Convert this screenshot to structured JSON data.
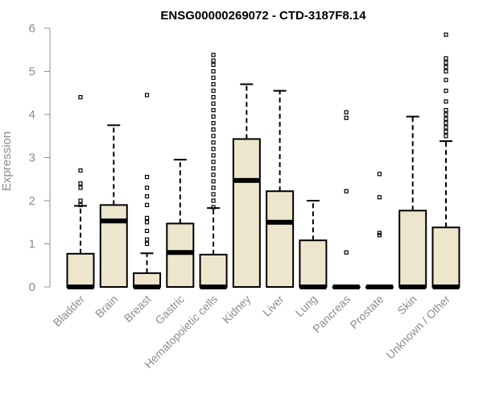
{
  "chart_data": {
    "type": "boxplot",
    "title": "ENSG00000269072 - CTD-3187F8.14",
    "xlabel": "",
    "ylabel": "Expression",
    "ylim": [
      0,
      6
    ],
    "yticks": [
      "0",
      "1",
      "2",
      "3",
      "4",
      "5",
      "6"
    ],
    "grid": false,
    "colors": {
      "box_fill": "#ede6cd",
      "stroke": "#000000",
      "axis": "#8c8c8c"
    },
    "categories": [
      "Bladder",
      "Brain",
      "Breast",
      "Gastric",
      "Hematopoietic cells",
      "Kidney",
      "Liver",
      "Lung",
      "Pancreas",
      "Prostate",
      "Skin",
      "Unknown / Other"
    ],
    "boxes": [
      {
        "min": 0,
        "q1": 0,
        "median": 0,
        "q3": 0.77,
        "max": 1.88,
        "outliers": [
          1.9,
          2.0,
          2.3,
          2.4,
          2.7,
          4.4
        ]
      },
      {
        "min": 0,
        "q1": 0,
        "median": 1.53,
        "q3": 1.9,
        "max": 3.75,
        "outliers": []
      },
      {
        "min": 0,
        "q1": 0,
        "median": 0,
        "q3": 0.32,
        "max": 0.78,
        "outliers": [
          1.0,
          1.1,
          1.3,
          1.5,
          1.6,
          1.9,
          2.1,
          2.3,
          2.55,
          4.45
        ]
      },
      {
        "min": 0,
        "q1": 0,
        "median": 0.8,
        "q3": 1.47,
        "max": 2.95,
        "outliers": []
      },
      {
        "min": 0,
        "q1": 0,
        "median": 0,
        "q3": 0.75,
        "max": 1.83,
        "outliers": [
          1.85,
          2.0,
          2.15,
          2.3,
          2.45,
          2.6,
          2.75,
          2.9,
          3.05,
          3.2,
          3.35,
          3.5,
          3.65,
          3.8,
          3.95,
          4.1,
          4.25,
          4.4,
          4.55,
          4.7,
          4.85,
          5.0,
          5.15,
          5.25,
          5.38
        ]
      },
      {
        "min": 0,
        "q1": 0,
        "median": 2.47,
        "q3": 3.43,
        "max": 4.7,
        "outliers": []
      },
      {
        "min": 0,
        "q1": 0,
        "median": 1.5,
        "q3": 2.22,
        "max": 4.55,
        "outliers": []
      },
      {
        "min": 0,
        "q1": 0,
        "median": 0,
        "q3": 1.08,
        "max": 2.0,
        "outliers": []
      },
      {
        "min": 0,
        "q1": 0,
        "median": 0,
        "q3": 0,
        "max": 0,
        "outliers": [
          0.8,
          2.22,
          3.92,
          4.05
        ]
      },
      {
        "min": 0,
        "q1": 0,
        "median": 0,
        "q3": 0,
        "max": 0,
        "outliers": [
          1.2,
          1.25,
          2.08,
          2.62
        ]
      },
      {
        "min": 0,
        "q1": 0,
        "median": 0,
        "q3": 1.77,
        "max": 3.95,
        "outliers": []
      },
      {
        "min": 0,
        "q1": 0,
        "median": 0,
        "q3": 1.38,
        "max": 3.38,
        "outliers": [
          3.5,
          3.6,
          3.7,
          3.8,
          3.9,
          4.0,
          4.1,
          4.3,
          4.55,
          4.8,
          5.0,
          5.1,
          5.2,
          5.3,
          5.85
        ]
      }
    ]
  }
}
